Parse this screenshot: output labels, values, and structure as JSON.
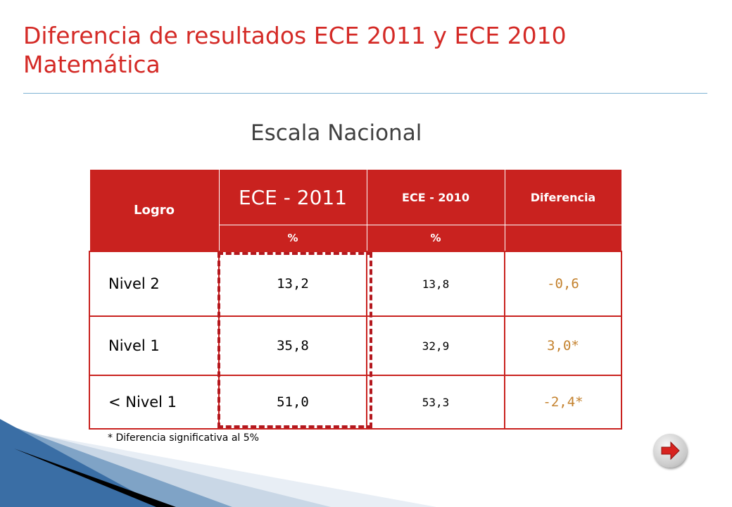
{
  "slide": {
    "title_line1": "Diferencia de resultados ECE 2011 y ECE 2010",
    "title_line2": "Matemática",
    "subtitle": "Escala Nacional"
  },
  "table": {
    "headers": {
      "logro": "Logro",
      "ece2011": "ECE - 2011",
      "ece2010": "ECE - 2010",
      "diferencia": "Diferencia",
      "unit_2011": "%",
      "unit_2010": "%"
    },
    "rows": [
      {
        "level": "Nivel 2",
        "ece2011": "13,2",
        "ece2010": "13,8",
        "diferencia": "-0,6"
      },
      {
        "level": "Nivel 1",
        "ece2011": "35,8",
        "ece2010": "32,9",
        "diferencia": "3,0*"
      },
      {
        "level": "< Nivel 1",
        "ece2011": "51,0",
        "ece2010": "53,3",
        "diferencia": "-2,4*"
      }
    ]
  },
  "footnote": "* Diferencia significativa al 5%",
  "navigation": {
    "next_icon": "arrow-right-icon"
  },
  "colors": {
    "accent": "#d42a26",
    "header_fill": "#c9221f",
    "diff_text": "#c4822e",
    "rule": "#7fb2d3"
  }
}
